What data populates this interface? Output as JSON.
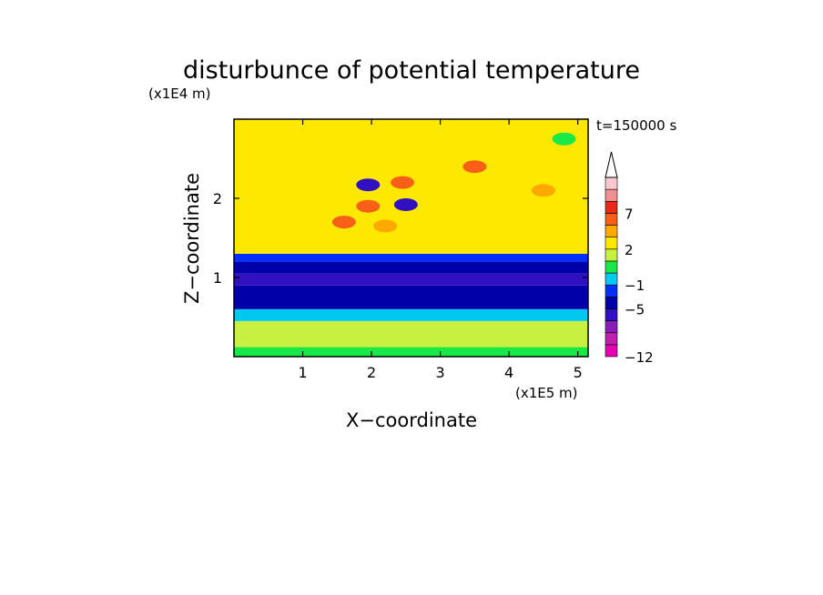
{
  "chart_data": {
    "type": "heatmap",
    "title": "disturbunce of potential temperature",
    "time_label": "t=150000 s",
    "xlabel": "X−coordinate",
    "ylabel": "Z−coordinate",
    "x_unit": "(x1E5 m)",
    "y_unit": "(x1E4 m)",
    "xlim": [
      0,
      5.15
    ],
    "ylim": [
      0,
      3.0
    ],
    "x_ticks": [
      1,
      2,
      3,
      4,
      5
    ],
    "x_tick_labels": [
      "1",
      "2",
      "3",
      "4",
      "5"
    ],
    "y_ticks": [
      1,
      2
    ],
    "y_tick_labels": [
      "1",
      "2"
    ],
    "colorbar": {
      "levels": [
        -12,
        -11,
        -9,
        -7,
        -5,
        -3,
        -1,
        0,
        1,
        2,
        3,
        5,
        7,
        9,
        11
      ],
      "colors": [
        "#e800b4",
        "#c020b0",
        "#8820b8",
        "#3010c0",
        "#0000a8",
        "#0030ff",
        "#00c8f0",
        "#18e848",
        "#c8f040",
        "#ffe800",
        "#ffa800",
        "#f86018",
        "#e82818",
        "#f09090",
        "#f8c8d0"
      ],
      "tick_values": [
        -12,
        -5,
        -1,
        2,
        7
      ],
      "tick_labels": [
        "−12",
        "−5",
        "−1",
        "2",
        "7"
      ],
      "extend": "max"
    },
    "field_bands": [
      {
        "z": [
          0.0,
          0.12
        ],
        "value": 0.5
      },
      {
        "z": [
          0.12,
          0.45
        ],
        "value": 1.5
      },
      {
        "z": [
          0.45,
          0.6
        ],
        "value": -0.5
      },
      {
        "z": [
          0.6,
          0.9
        ],
        "value": -4
      },
      {
        "z": [
          0.9,
          1.05
        ],
        "value": -6
      },
      {
        "z": [
          1.05,
          1.2
        ],
        "value": -4
      },
      {
        "z": [
          1.2,
          1.3
        ],
        "value": -1.5
      },
      {
        "z": [
          1.3,
          3.0
        ],
        "value": 2.5
      }
    ],
    "features": [
      {
        "x": 1.95,
        "z": 2.17,
        "value": -6
      },
      {
        "x": 2.5,
        "z": 1.92,
        "value": -6
      },
      {
        "x": 1.95,
        "z": 1.9,
        "value": 5
      },
      {
        "x": 2.45,
        "z": 2.2,
        "value": 5
      },
      {
        "x": 2.2,
        "z": 1.65,
        "value": 4
      },
      {
        "x": 1.6,
        "z": 1.7,
        "value": 5
      },
      {
        "x": 3.5,
        "z": 2.4,
        "value": 5
      },
      {
        "x": 4.5,
        "z": 2.1,
        "value": 3
      },
      {
        "x": 4.8,
        "z": 2.75,
        "value": 0.5
      }
    ]
  }
}
